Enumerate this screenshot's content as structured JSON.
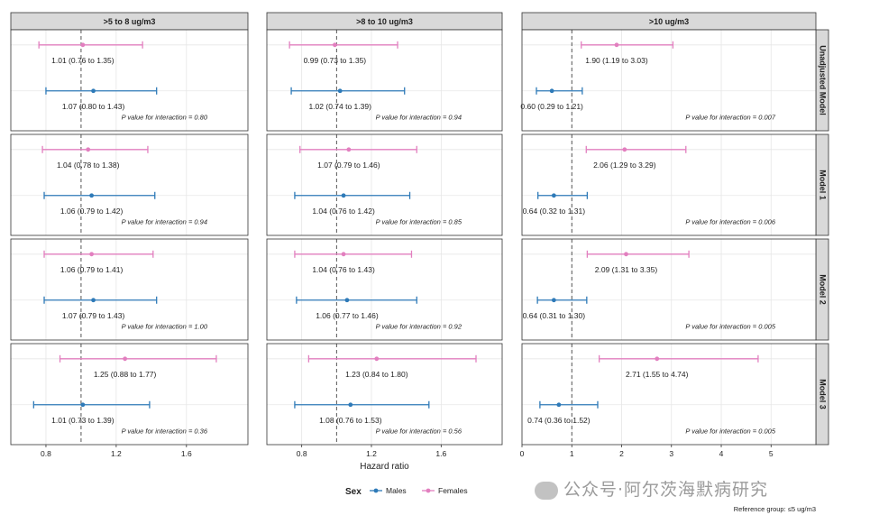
{
  "chart_data": {
    "type": "forest",
    "panel_columns": [
      {
        "title": ">5 to 8 ug/m3",
        "xlim": [
          0.6,
          1.95
        ],
        "ticks": [
          0.8,
          1.2,
          1.6
        ],
        "tick_labels": [
          "0.8",
          "1.2",
          "1.6"
        ]
      },
      {
        "title": ">8 to 10 ug/m3",
        "xlim": [
          0.6,
          1.95
        ],
        "ticks": [
          0.8,
          1.2,
          1.6
        ],
        "tick_labels": [
          "0.8",
          "1.2",
          "1.6"
        ]
      },
      {
        "title": ">10 ug/m3",
        "xlim": [
          0,
          5.9
        ],
        "ticks": [
          0,
          1,
          2,
          3,
          4,
          5
        ],
        "tick_labels": [
          "0",
          "1",
          "2",
          "3",
          "4",
          "5"
        ]
      }
    ],
    "panel_rows": [
      "Unadjusted Model",
      "Model 1",
      "Model 2",
      "Model 3"
    ],
    "reference_value": 1,
    "xlabel": "Hazard ratio",
    "legend": {
      "title": "Sex",
      "items": [
        "Males",
        "Females"
      ]
    },
    "colors": {
      "Males": "#2e7ab8",
      "Females": "#e27fbf"
    },
    "footnote": "Reference group: ≤5 ug/m3",
    "cells": [
      [
        {
          "females": {
            "hr": 1.01,
            "lo": 0.76,
            "hi": 1.35,
            "label": "1.01 (0.76 to 1.35)"
          },
          "males": {
            "hr": 1.07,
            "lo": 0.8,
            "hi": 1.43,
            "label": "1.07 (0.80 to 1.43)"
          },
          "p": "P value for interaction = 0.80"
        },
        {
          "females": {
            "hr": 0.99,
            "lo": 0.73,
            "hi": 1.35,
            "label": "0.99 (0.73 to 1.35)"
          },
          "males": {
            "hr": 1.02,
            "lo": 0.74,
            "hi": 1.39,
            "label": "1.02 (0.74 to 1.39)"
          },
          "p": "P value for interaction = 0.94"
        },
        {
          "females": {
            "hr": 1.9,
            "lo": 1.19,
            "hi": 3.03,
            "label": "1.90 (1.19 to 3.03)"
          },
          "males": {
            "hr": 0.6,
            "lo": 0.29,
            "hi": 1.21,
            "label": "0.60 (0.29 to 1.21)"
          },
          "p": "P value for interaction = 0.007"
        }
      ],
      [
        {
          "females": {
            "hr": 1.04,
            "lo": 0.78,
            "hi": 1.38,
            "label": "1.04 (0.78 to 1.38)"
          },
          "males": {
            "hr": 1.06,
            "lo": 0.79,
            "hi": 1.42,
            "label": "1.06 (0.79 to 1.42)"
          },
          "p": "P value for interaction = 0.94"
        },
        {
          "females": {
            "hr": 1.07,
            "lo": 0.79,
            "hi": 1.46,
            "label": "1.07 (0.79 to 1.46)"
          },
          "males": {
            "hr": 1.04,
            "lo": 0.76,
            "hi": 1.42,
            "label": "1.04 (0.76 to 1.42)"
          },
          "p": "P value for interaction = 0.85"
        },
        {
          "females": {
            "hr": 2.06,
            "lo": 1.29,
            "hi": 3.29,
            "label": "2.06 (1.29 to 3.29)"
          },
          "males": {
            "hr": 0.64,
            "lo": 0.32,
            "hi": 1.31,
            "label": "0.64 (0.32 to 1.31)"
          },
          "p": "P value for interaction = 0.006"
        }
      ],
      [
        {
          "females": {
            "hr": 1.06,
            "lo": 0.79,
            "hi": 1.41,
            "label": "1.06 (0.79 to 1.41)"
          },
          "males": {
            "hr": 1.07,
            "lo": 0.79,
            "hi": 1.43,
            "label": "1.07 (0.79 to 1.43)"
          },
          "p": "P value for interaction = 1.00"
        },
        {
          "females": {
            "hr": 1.04,
            "lo": 0.76,
            "hi": 1.43,
            "label": "1.04 (0.76 to 1.43)"
          },
          "males": {
            "hr": 1.06,
            "lo": 0.77,
            "hi": 1.46,
            "label": "1.06 (0.77 to 1.46)"
          },
          "p": "P value for interaction = 0.92"
        },
        {
          "females": {
            "hr": 2.09,
            "lo": 1.31,
            "hi": 3.35,
            "label": "2.09 (1.31 to 3.35)"
          },
          "males": {
            "hr": 0.64,
            "lo": 0.31,
            "hi": 1.3,
            "label": "0.64 (0.31 to 1.30)"
          },
          "p": "P value for interaction = 0.005"
        }
      ],
      [
        {
          "females": {
            "hr": 1.25,
            "lo": 0.88,
            "hi": 1.77,
            "label": "1.25 (0.88 to 1.77)"
          },
          "males": {
            "hr": 1.01,
            "lo": 0.73,
            "hi": 1.39,
            "label": "1.01 (0.73 to 1.39)"
          },
          "p": "P value for interaction = 0.36"
        },
        {
          "females": {
            "hr": 1.23,
            "lo": 0.84,
            "hi": 1.8,
            "label": "1.23 (0.84 to 1.80)"
          },
          "males": {
            "hr": 1.08,
            "lo": 0.76,
            "hi": 1.53,
            "label": "1.08 (0.76 to 1.53)"
          },
          "p": "P value for interaction = 0.56"
        },
        {
          "females": {
            "hr": 2.71,
            "lo": 1.55,
            "hi": 4.74,
            "label": "2.71 (1.55 to 4.74)"
          },
          "males": {
            "hr": 0.74,
            "lo": 0.36,
            "hi": 1.52,
            "label": "0.74 (0.36 to 1.52)"
          },
          "p": "P value for interaction = 0.005"
        }
      ]
    ]
  },
  "watermark": "公众号·阿尔茨海默病研究"
}
